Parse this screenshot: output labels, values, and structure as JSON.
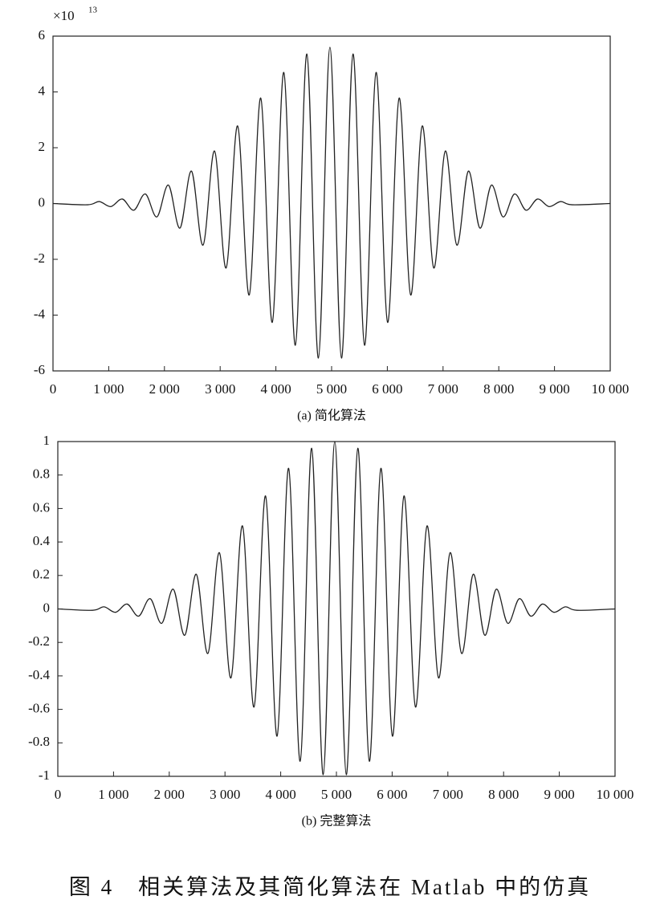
{
  "chart_data": [
    {
      "type": "line",
      "caption": "(a) 简化算法",
      "y_multiplier": {
        "base": "×10",
        "exponent": "13"
      },
      "x": [
        0,
        623,
        830,
        1037,
        1244,
        1451,
        1658,
        1865,
        2072,
        2279,
        2486,
        2693,
        2900,
        3107,
        3314,
        3521,
        3728,
        3935,
        4142,
        4349,
        4556,
        4763,
        4970,
        5177,
        5384,
        5591,
        5798,
        6005,
        6212,
        6419,
        6626,
        6833,
        7040,
        7247,
        7454,
        7661,
        7868,
        8075,
        8282,
        8489,
        8696,
        8903,
        9110,
        9317,
        10000
      ],
      "values": [
        0,
        -0.045,
        0.07,
        -0.11,
        0.16,
        -0.24,
        0.34,
        -0.48,
        0.66,
        -0.88,
        1.16,
        -1.49,
        1.88,
        -2.31,
        2.78,
        -3.28,
        3.78,
        -4.26,
        4.7,
        -5.08,
        5.36,
        -5.54,
        5.6,
        -5.54,
        5.36,
        -5.08,
        4.7,
        -4.26,
        3.78,
        -3.28,
        2.78,
        -2.31,
        1.88,
        -1.49,
        1.16,
        -0.88,
        0.66,
        -0.48,
        0.34,
        -0.24,
        0.16,
        -0.11,
        0.07,
        -0.045,
        0
      ],
      "color": "#222222",
      "xlim": [
        0,
        10000
      ],
      "xticks": [
        0,
        {
          "value": 1000,
          "label": "1 000"
        },
        {
          "value": 2000,
          "label": "2 000"
        },
        {
          "value": 3000,
          "label": "3 000"
        },
        {
          "value": 4000,
          "label": "4 000"
        },
        {
          "value": 5000,
          "label": "5 000"
        },
        {
          "value": 6000,
          "label": "6 000"
        },
        {
          "value": 7000,
          "label": "7 000"
        },
        {
          "value": 8000,
          "label": "8 000"
        },
        {
          "value": 9000,
          "label": "9 000"
        },
        {
          "value": 10000,
          "label": "10 000"
        }
      ],
      "ylim": [
        -6,
        6
      ],
      "yticks": [
        -6,
        -4,
        -2,
        0,
        2,
        4,
        6
      ]
    },
    {
      "type": "line",
      "caption": "(b) 完整算法",
      "x": [
        0,
        623,
        830,
        1037,
        1244,
        1451,
        1658,
        1865,
        2072,
        2279,
        2486,
        2693,
        2900,
        3107,
        3314,
        3521,
        3728,
        3935,
        4142,
        4349,
        4556,
        4763,
        4970,
        5177,
        5384,
        5591,
        5798,
        6005,
        6212,
        6419,
        6626,
        6833,
        7040,
        7247,
        7454,
        7661,
        7868,
        8075,
        8282,
        8489,
        8696,
        8903,
        9110,
        9317,
        10000
      ],
      "values": [
        0,
        -0.008,
        0.0125,
        -0.02,
        0.029,
        -0.043,
        0.061,
        -0.086,
        0.118,
        -0.157,
        0.207,
        -0.266,
        0.336,
        -0.412,
        0.496,
        -0.586,
        0.675,
        -0.76,
        0.84,
        -0.91,
        0.96,
        -0.99,
        1,
        -0.99,
        0.96,
        -0.91,
        0.84,
        -0.76,
        0.675,
        -0.586,
        0.496,
        -0.412,
        0.336,
        -0.266,
        0.207,
        -0.157,
        0.118,
        -0.086,
        0.061,
        -0.043,
        0.029,
        -0.02,
        0.0125,
        -0.008,
        0
      ],
      "color": "#222222",
      "xlim": [
        0,
        10000
      ],
      "xticks": [
        0,
        {
          "value": 1000,
          "label": "1 000"
        },
        {
          "value": 2000,
          "label": "2 000"
        },
        {
          "value": 3000,
          "label": "3 000"
        },
        {
          "value": 4000,
          "label": "4 000"
        },
        {
          "value": 5000,
          "label": "5 000"
        },
        {
          "value": 6000,
          "label": "6 000"
        },
        {
          "value": 7000,
          "label": "7 000"
        },
        {
          "value": 8000,
          "label": "8 000"
        },
        {
          "value": 9000,
          "label": "9 000"
        },
        {
          "value": 10000,
          "label": "10 000"
        }
      ],
      "ylim": [
        -1,
        1
      ],
      "yticks": [
        -1,
        -0.8,
        -0.6,
        -0.4,
        -0.2,
        0,
        0.2,
        0.4,
        0.6,
        0.8,
        1
      ]
    }
  ],
  "figure_caption": "图 4　相关算法及其简化算法在 Matlab 中的仿真"
}
